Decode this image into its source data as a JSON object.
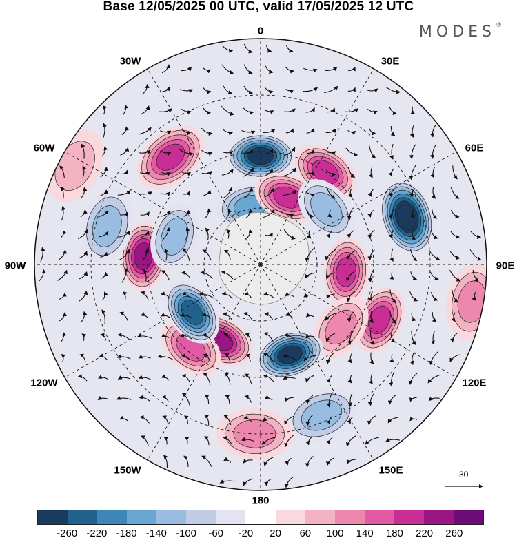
{
  "title": "Base 12/05/2025 00 UTC, valid 17/05/2025 12 UTC",
  "brand": {
    "name": "MODES",
    "mark": "®"
  },
  "longitude_labels": {
    "top": "0",
    "deg30e": "30E",
    "deg60e": "60E",
    "deg90e": "90E",
    "deg120e": "120E",
    "deg150e": "150E",
    "bottom": "180",
    "deg150w": "150W",
    "deg120w": "120W",
    "deg90w": "90W",
    "deg60w": "60W",
    "deg30w": "30W"
  },
  "reference_vector": {
    "value": "30"
  },
  "colorbar": {
    "colors": [
      "#1b3b5e",
      "#21628d",
      "#3c87b8",
      "#6aa6d2",
      "#98bde0",
      "#c1cde6",
      "#e3e3f1",
      "#ffffff",
      "#f9d9dd",
      "#f3b3c3",
      "#ee87ad",
      "#e25aa3",
      "#c92e95",
      "#9c1585",
      "#6d0c79"
    ],
    "ticks": [
      "-260",
      "-220",
      "-180",
      "-140",
      "-100",
      "-60",
      "-20",
      "20",
      "60",
      "100",
      "140",
      "180",
      "220",
      "260"
    ]
  },
  "anomalies": [
    {
      "name": "blue-north",
      "lon": 0,
      "rd": 0.48,
      "value": -230
    },
    {
      "name": "blue-north-small",
      "lon": -10,
      "rd": 0.26,
      "value": -130
    },
    {
      "name": "pink-30e",
      "lon": 35,
      "rd": 0.5,
      "value": 170
    },
    {
      "name": "pink-20e",
      "lon": 22,
      "rd": 0.32,
      "value": 160
    },
    {
      "name": "blue-75e",
      "lon": 72,
      "rd": 0.68,
      "value": -280
    },
    {
      "name": "blue-50e",
      "lon": 50,
      "rd": 0.38,
      "value": -90
    },
    {
      "name": "pink-95e",
      "lon": 95,
      "rd": 0.38,
      "value": 180
    },
    {
      "name": "pink-120e",
      "lon": 115,
      "rd": 0.58,
      "value": 150
    },
    {
      "name": "pink-125e",
      "lon": 128,
      "rd": 0.45,
      "value": 100
    },
    {
      "name": "blue-160e",
      "lon": 162,
      "rd": 0.42,
      "value": -240
    },
    {
      "name": "pink-155w",
      "lon": -152,
      "rd": 0.38,
      "value": 190
    },
    {
      "name": "pink-150w-wide",
      "lon": -140,
      "rd": 0.48,
      "value": 140
    },
    {
      "name": "blue-125w",
      "lon": -125,
      "rd": 0.37,
      "value": -200
    },
    {
      "name": "pink-85w",
      "lon": -86,
      "rd": 0.52,
      "value": 210
    },
    {
      "name": "pink-40w",
      "lon": -40,
      "rd": 0.62,
      "value": 150
    },
    {
      "name": "blue-70w",
      "lon": -72,
      "rd": 0.4,
      "value": -100
    },
    {
      "name": "blue-75w-band",
      "lon": -76,
      "rd": 0.7,
      "value": -90
    },
    {
      "name": "blue-165e",
      "lon": 158,
      "rd": 0.72,
      "value": -80
    },
    {
      "name": "pink-175w",
      "lon": -178,
      "rd": 0.75,
      "value": 80
    },
    {
      "name": "pink-105e",
      "lon": 100,
      "rd": 0.95,
      "value": 70
    },
    {
      "name": "pink-60w-outer",
      "lon": -62,
      "rd": 0.93,
      "value": 60
    }
  ]
}
